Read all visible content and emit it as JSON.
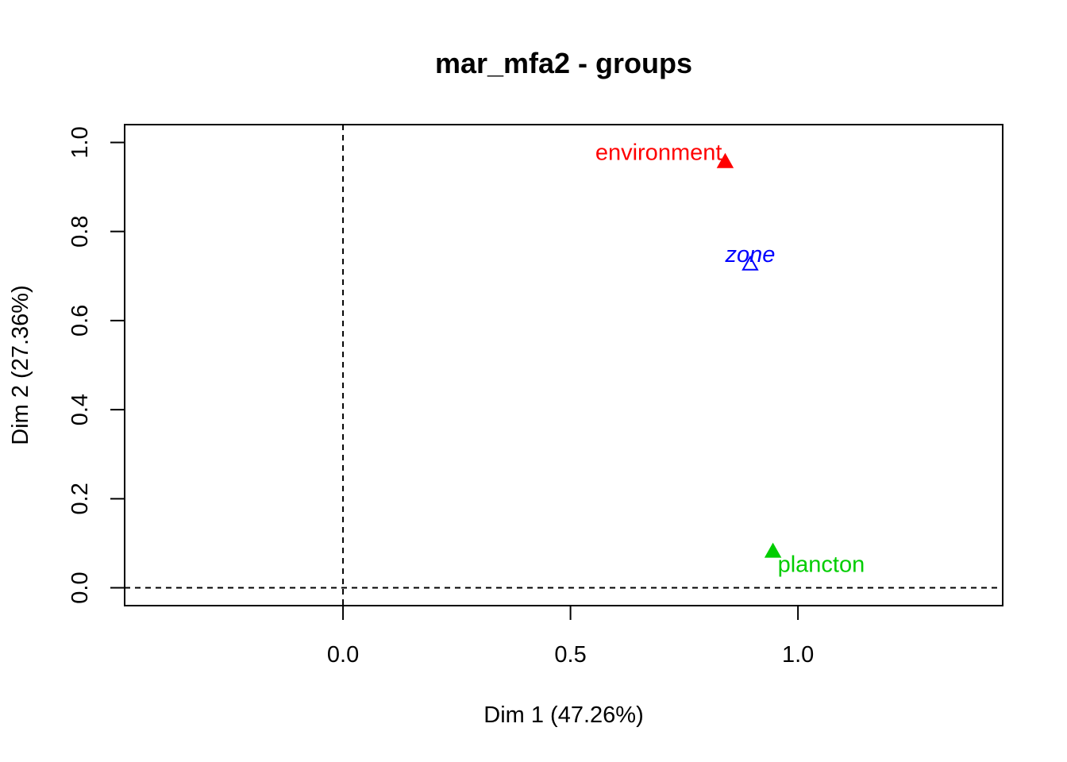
{
  "chart_data": {
    "type": "scatter",
    "title": "mar_mfa2 - groups",
    "xlabel": "Dim 1 (47.26%)",
    "ylabel": "Dim 2 (27.36%)",
    "xlim": [
      -0.48,
      1.45
    ],
    "ylim": [
      -0.04,
      1.04
    ],
    "x_ticks": [
      0.0,
      0.5,
      1.0
    ],
    "x_tick_labels": [
      "0.0",
      "0.5",
      "1.0"
    ],
    "y_ticks": [
      0.0,
      0.2,
      0.4,
      0.6,
      0.8,
      1.0
    ],
    "y_tick_labels": [
      "0.0",
      "0.2",
      "0.4",
      "0.6",
      "0.8",
      "1.0"
    ],
    "reference_lines": {
      "x": 0,
      "y": 0,
      "style": "dashed"
    },
    "grid": false,
    "points": [
      {
        "label": "environment",
        "x": 0.84,
        "y": 0.955,
        "color": "#ff0000",
        "marker": "filled-triangle",
        "italic": false,
        "label_pos": "left"
      },
      {
        "label": "zone",
        "x": 0.895,
        "y": 0.725,
        "color": "#0000ff",
        "marker": "open-triangle",
        "italic": true,
        "label_pos": "center"
      },
      {
        "label": "plancton",
        "x": 0.945,
        "y": 0.08,
        "color": "#00cd00",
        "marker": "filled-triangle",
        "italic": false,
        "label_pos": "right"
      }
    ]
  }
}
